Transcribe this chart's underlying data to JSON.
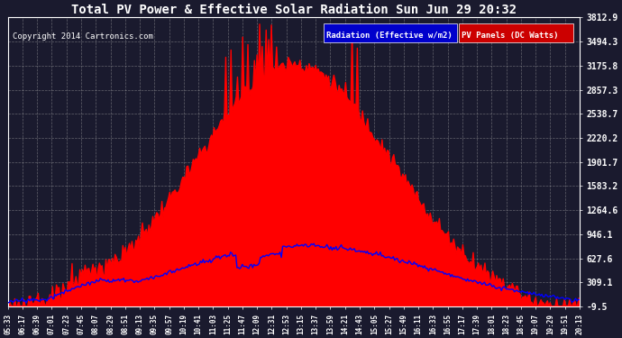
{
  "title": "Total PV Power & Effective Solar Radiation Sun Jun 29 20:32",
  "copyright": "Copyright 2014 Cartronics.com",
  "bg_color": "#1a1a2e",
  "plot_bg_color": "#1a1a2e",
  "yticks": [
    3812.9,
    3494.3,
    3175.8,
    2857.3,
    2538.7,
    2220.2,
    1901.7,
    1583.2,
    1264.6,
    946.1,
    627.6,
    309.1,
    -9.5
  ],
  "ylim": [
    -9.5,
    3812.9
  ],
  "legend_radiation_label": "Radiation (Effective w/m2)",
  "legend_pv_label": "PV Panels (DC Watts)",
  "legend_radiation_bg": "#0000cc",
  "legend_pv_bg": "#cc0000",
  "pv_color": "#ff0000",
  "radiation_color": "#0000ff",
  "grid_color": "#aaaaaa",
  "title_color": "#ffffff",
  "axis_color": "#ffffff",
  "xtick_labels": [
    "05:33",
    "06:17",
    "06:39",
    "07:01",
    "07:23",
    "07:45",
    "08:07",
    "08:29",
    "08:51",
    "09:13",
    "09:35",
    "09:57",
    "10:19",
    "10:41",
    "11:03",
    "11:25",
    "11:47",
    "12:09",
    "12:31",
    "12:53",
    "13:15",
    "13:37",
    "13:59",
    "14:21",
    "14:43",
    "15:05",
    "15:27",
    "15:49",
    "16:11",
    "16:33",
    "16:55",
    "17:17",
    "17:39",
    "18:01",
    "18:23",
    "18:45",
    "19:07",
    "19:29",
    "19:51",
    "20:13"
  ]
}
